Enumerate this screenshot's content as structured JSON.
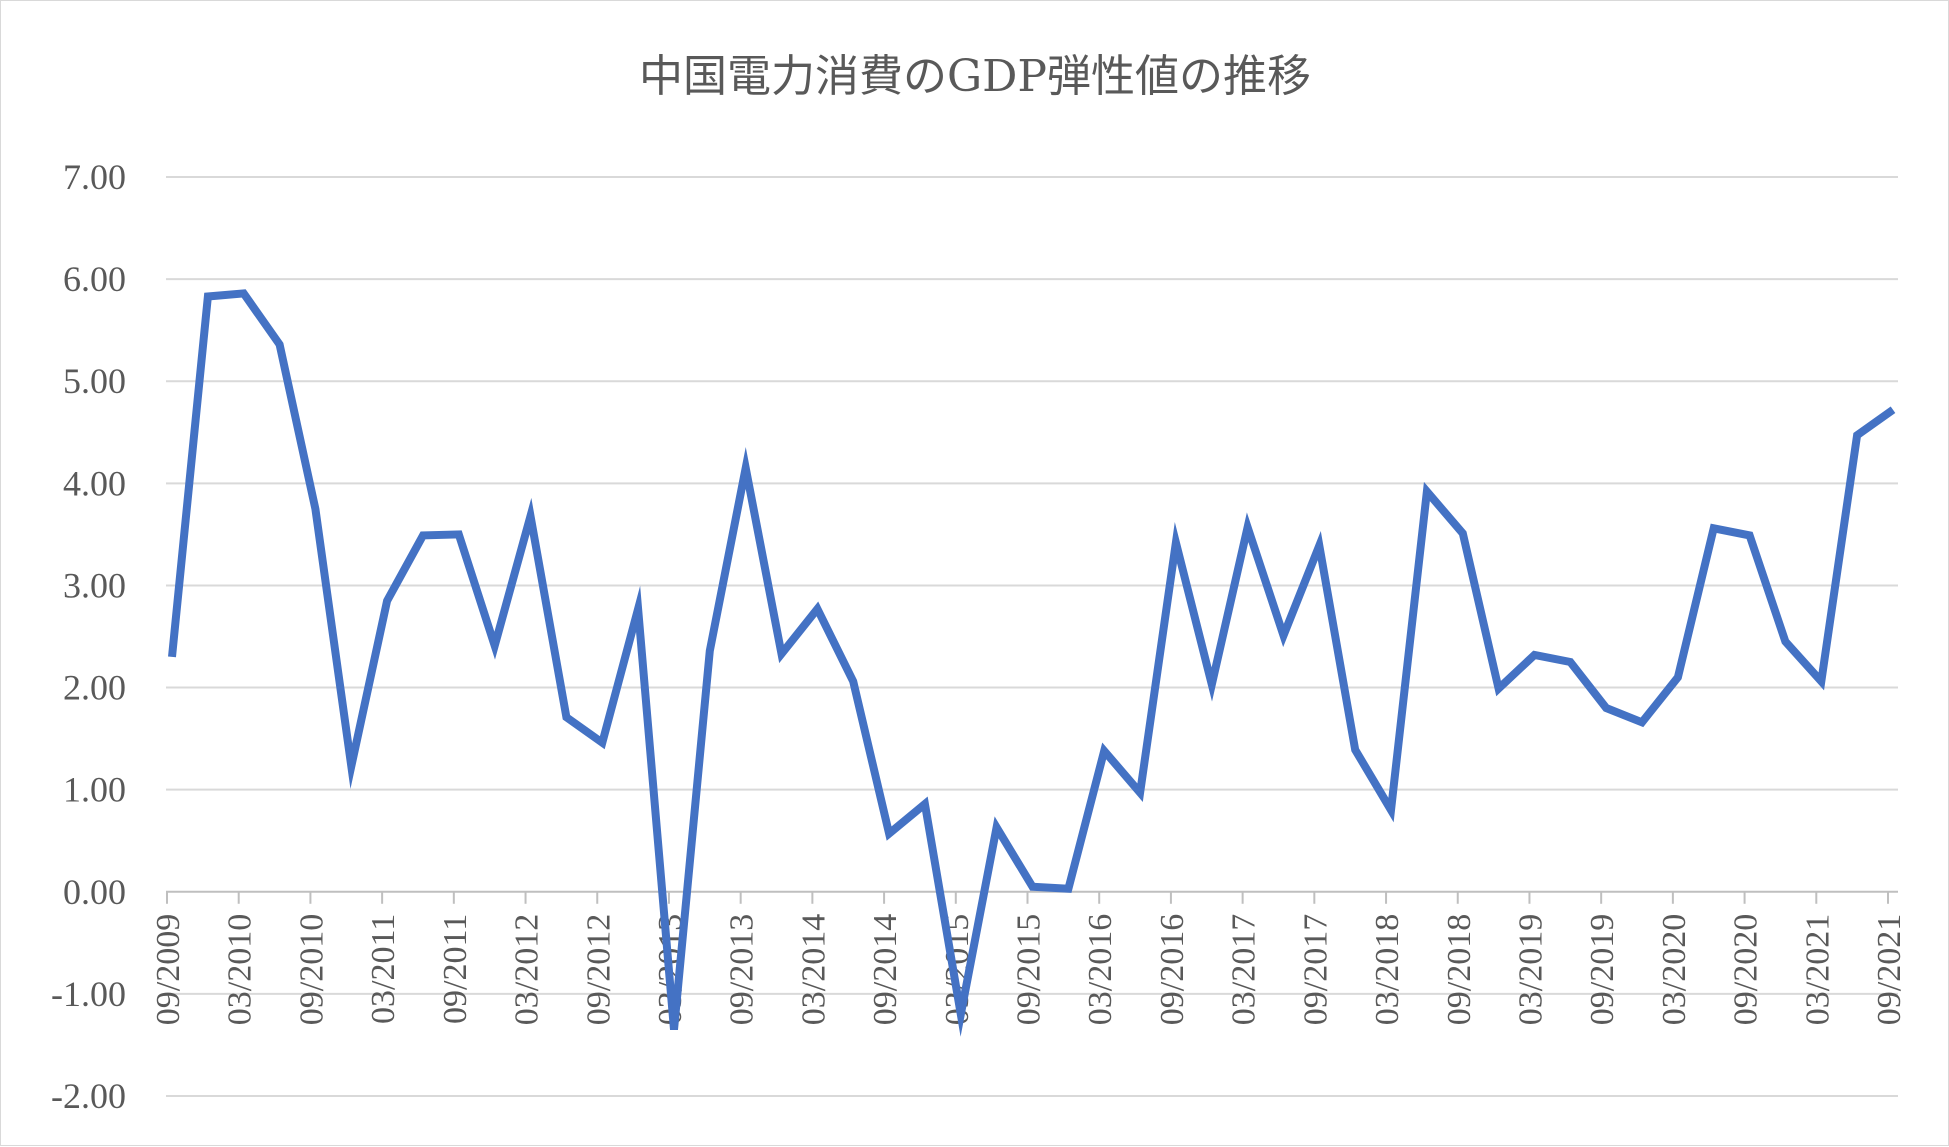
{
  "chart_data": {
    "type": "line",
    "title": "中国電力消費のGDP弾性値の推移",
    "xlabel": "",
    "ylabel": "",
    "ylim": [
      -2,
      7
    ],
    "y_ticks": [
      "-2.00",
      "-1.00",
      "0.00",
      "1.00",
      "2.00",
      "3.00",
      "4.00",
      "5.00",
      "6.00",
      "7.00"
    ],
    "y_tick_values": [
      -2,
      -1,
      0,
      1,
      2,
      3,
      4,
      5,
      6,
      7
    ],
    "x_tick_labels": [
      "09/2009",
      "03/2010",
      "09/2010",
      "03/2011",
      "09/2011",
      "03/2012",
      "09/2012",
      "03/2013",
      "09/2013",
      "03/2014",
      "09/2014",
      "03/2015",
      "09/2015",
      "03/2016",
      "09/2016",
      "03/2017",
      "09/2017",
      "03/2018",
      "09/2018",
      "03/2019",
      "09/2019",
      "03/2020",
      "09/2020",
      "03/2021",
      "09/2021"
    ],
    "grid": true,
    "legend": "none",
    "series": [
      {
        "color": "#4472C4",
        "x": [
          "09/2009",
          "12/2009",
          "03/2010",
          "06/2010",
          "09/2010",
          "12/2010",
          "03/2011",
          "06/2011",
          "09/2011",
          "12/2011",
          "03/2012",
          "06/2012",
          "09/2012",
          "12/2012",
          "03/2013",
          "06/2013",
          "09/2013",
          "12/2013",
          "03/2014",
          "06/2014",
          "09/2014",
          "12/2014",
          "03/2015",
          "06/2015",
          "09/2015",
          "12/2015",
          "03/2016",
          "06/2016",
          "09/2016",
          "12/2016",
          "03/2017",
          "06/2017",
          "09/2017",
          "12/2017",
          "03/2018",
          "06/2018",
          "09/2018",
          "12/2018",
          "03/2019",
          "06/2019",
          "09/2019",
          "12/2019",
          "03/2020",
          "06/2020",
          "09/2020",
          "12/2020",
          "03/2021",
          "06/2021",
          "09/2021"
        ],
        "values": [
          2.3,
          5.83,
          5.86,
          5.36,
          3.75,
          1.23,
          2.85,
          3.49,
          3.5,
          2.41,
          3.68,
          1.71,
          1.46,
          2.77,
          -1.35,
          2.36,
          4.15,
          2.33,
          2.77,
          2.06,
          0.57,
          0.86,
          -1.2,
          0.63,
          0.05,
          0.03,
          1.38,
          0.97,
          3.42,
          2.03,
          3.57,
          2.51,
          3.39,
          1.39,
          0.8,
          3.92,
          3.51,
          1.99,
          2.32,
          2.25,
          1.8,
          1.66,
          2.1,
          3.56,
          3.49,
          2.45,
          2.06,
          4.47,
          4.72
        ]
      }
    ]
  }
}
